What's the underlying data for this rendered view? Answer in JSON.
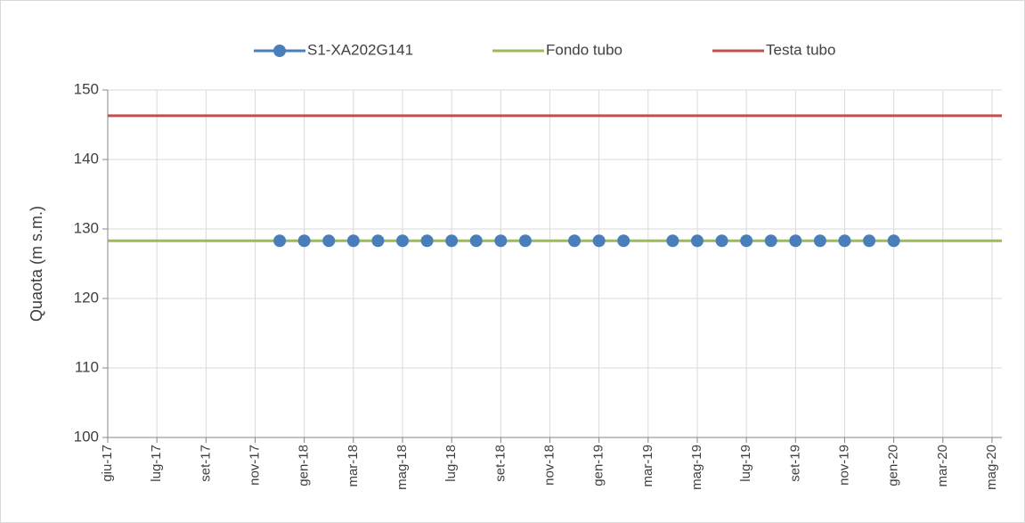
{
  "chart_data": {
    "type": "line",
    "ylabel": "Quaota (m s.m.)",
    "xlim": [
      5,
      41.4
    ],
    "xticks": [
      {
        "value": 5,
        "label": "giu-17"
      },
      {
        "value": 7,
        "label": "lug-17"
      },
      {
        "value": 9,
        "label": "set-17"
      },
      {
        "value": 11,
        "label": "nov-17"
      },
      {
        "value": 13,
        "label": "gen-18"
      },
      {
        "value": 15,
        "label": "mar-18"
      },
      {
        "value": 17,
        "label": "mag-18"
      },
      {
        "value": 19,
        "label": "lug-18"
      },
      {
        "value": 21,
        "label": "set-18"
      },
      {
        "value": 23,
        "label": "nov-18"
      },
      {
        "value": 25,
        "label": "gen-19"
      },
      {
        "value": 27,
        "label": "mar-19"
      },
      {
        "value": 29,
        "label": "mag-19"
      },
      {
        "value": 31,
        "label": "lug-19"
      },
      {
        "value": 33,
        "label": "set-19"
      },
      {
        "value": 35,
        "label": "nov-19"
      },
      {
        "value": 37,
        "label": "gen-20"
      },
      {
        "value": 39,
        "label": "mar-20"
      },
      {
        "value": 41,
        "label": "mag-20"
      }
    ],
    "ylim": [
      100,
      150
    ],
    "yticks": [
      100,
      110,
      120,
      130,
      140,
      150
    ],
    "grid": true,
    "legend": "top",
    "series": [
      {
        "name": "S1-XA202G141",
        "color": "#4a7ebb",
        "marker": true,
        "x": [
          12,
          13,
          14,
          15,
          16,
          17,
          18,
          19,
          20,
          21,
          22,
          24,
          25,
          26,
          28,
          29,
          30,
          31,
          32,
          33,
          34,
          35,
          36,
          37
        ],
        "values": [
          128.3,
          128.3,
          128.3,
          128.3,
          128.3,
          128.3,
          128.3,
          128.3,
          128.3,
          128.3,
          128.3,
          128.3,
          128.3,
          128.3,
          128.3,
          128.3,
          128.3,
          128.3,
          128.3,
          128.3,
          128.3,
          128.3,
          128.3,
          128.3
        ]
      },
      {
        "name": "Fondo tubo",
        "color": "#9bbb59",
        "marker": false,
        "x": [
          5,
          41.4
        ],
        "values": [
          128.3,
          128.3
        ]
      },
      {
        "name": "Testa tubo",
        "color": "#c0504d",
        "marker": false,
        "x": [
          5,
          41.4
        ],
        "values": [
          146.3,
          146.3
        ]
      }
    ]
  }
}
